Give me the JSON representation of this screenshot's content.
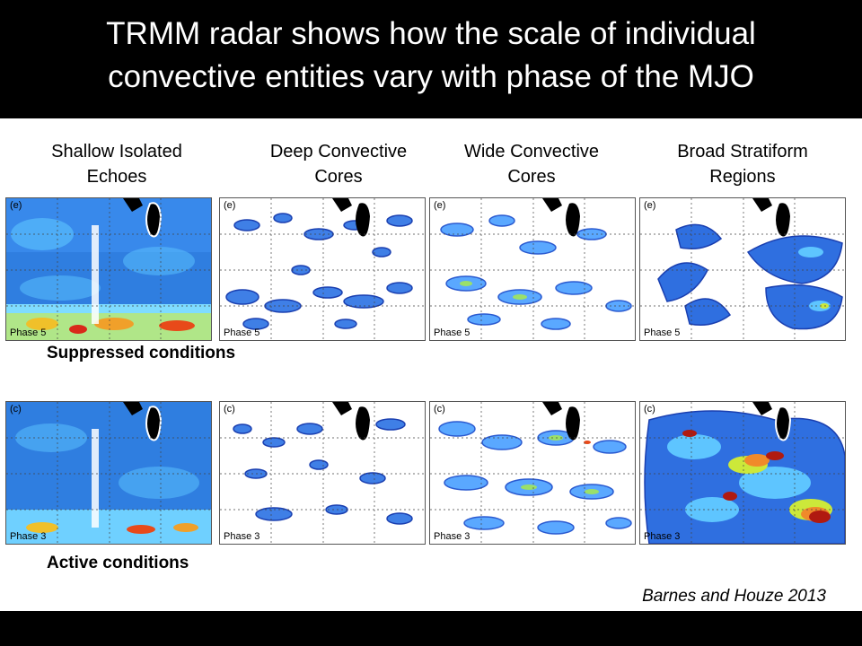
{
  "title": "TRMM radar shows how the scale of individual\nconvective entities vary with phase of the MJO",
  "columns": [
    {
      "label": "Shallow Isolated\nEchoes"
    },
    {
      "label": "Deep Convective\nCores"
    },
    {
      "label": "Wide Convective\nCores"
    },
    {
      "label": "Broad Stratiform\nRegions"
    }
  ],
  "rows": [
    {
      "condition": "Suppressed conditions",
      "panel_letter": "(e)",
      "phase_label": "Phase 5"
    },
    {
      "condition": "Active conditions",
      "panel_letter": "(c)",
      "phase_label": "Phase 3"
    }
  ],
  "citation": "Barnes and Houze 2013",
  "colors": {
    "background_bar": "#000000",
    "field_low": "#2b6fd6",
    "field_mid": "#5fc7ff",
    "field_high": "#d92a1a",
    "land": "#000000"
  }
}
